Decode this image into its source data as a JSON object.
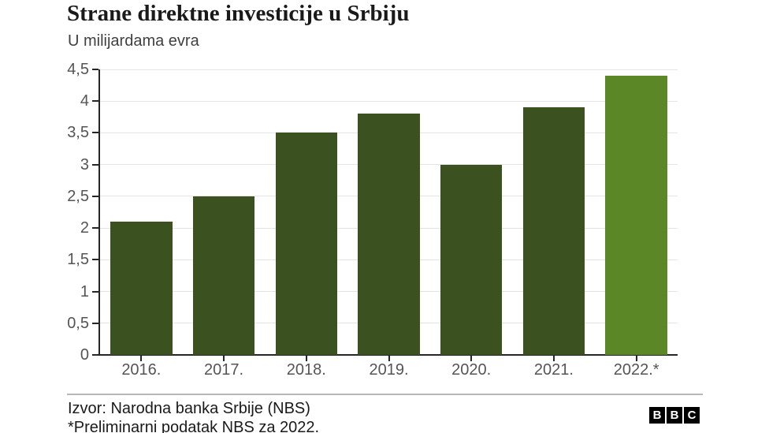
{
  "header": {
    "title": "Strane direktne investicije u Srbiju",
    "subtitle": "U milijardama evra"
  },
  "chart_data": {
    "type": "bar",
    "title": "Strane direktne investicije u Srbiju",
    "subtitle": "U milijardama evra",
    "categories": [
      "2016.",
      "2017.",
      "2018.",
      "2019.",
      "2020.",
      "2021.",
      "2022.*"
    ],
    "values": [
      2.1,
      2.5,
      3.5,
      3.8,
      3.0,
      3.9,
      4.4
    ],
    "xlabel": "",
    "ylabel": "U milijardama evra",
    "ylim": [
      0,
      4.5
    ],
    "grid": true,
    "legend": "none",
    "yticks": [
      {
        "v": 0,
        "label": "0"
      },
      {
        "v": 0.5,
        "label": "0,5"
      },
      {
        "v": 1,
        "label": "1"
      },
      {
        "v": 1.5,
        "label": "1,5"
      },
      {
        "v": 2,
        "label": "2"
      },
      {
        "v": 2.5,
        "label": "2,5"
      },
      {
        "v": 3,
        "label": "3"
      },
      {
        "v": 3.5,
        "label": "3,5"
      },
      {
        "v": 4,
        "label": "4"
      },
      {
        "v": 4.5,
        "label": "4,5"
      }
    ],
    "bar_color": "#3b5220",
    "highlight_color": "#5b8727",
    "highlight_index": 6
  },
  "footer": {
    "source": "Izvor: Narodna banka Srbije (NBS)",
    "note": "*Preliminarni podatak NBS za 2022.",
    "logo": [
      "B",
      "B",
      "C"
    ]
  },
  "colors": {
    "axis": "#262626",
    "gridline": "#e4e4e4",
    "tick_label": "#555555",
    "title": "#1a1a1a",
    "background": "#ffffff"
  }
}
